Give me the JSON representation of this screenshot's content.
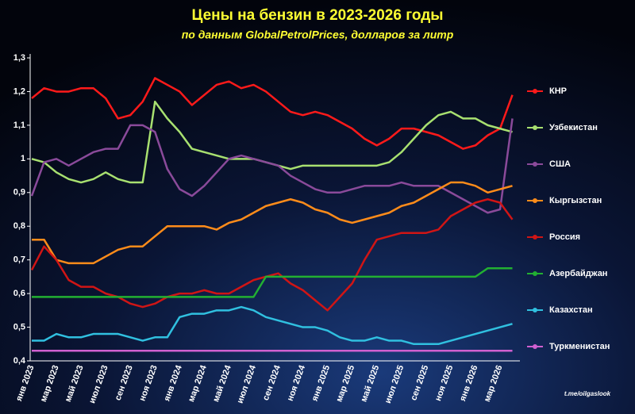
{
  "chart_data": {
    "type": "line",
    "title": "Цены на бензин в 2023-2026 годы",
    "subtitle": "по данным GlobalPetrolPrices, долларов за литр",
    "source": "t.me/oilgaslook",
    "categories": [
      "янв 2023",
      null,
      "мар 2023",
      null,
      "май 2023",
      null,
      "июл 2023",
      null,
      "сен 2023",
      null,
      "ноя 2023",
      null,
      "янв 2024",
      null,
      "мар 2024",
      null,
      "май 2024",
      null,
      "июл 2024",
      null,
      "сен 2024",
      null,
      "ноя 2024",
      null,
      "янв 2025",
      null,
      "мар 2025",
      null,
      "май 2025",
      null,
      "июл 2025",
      null,
      "сен 2025",
      null,
      "ноя 2025",
      null,
      "янв 2026",
      null,
      "мар 2026",
      null
    ],
    "ylim": [
      0.4,
      1.3
    ],
    "yticks": [
      {
        "value": 0.4,
        "label": "0,4"
      },
      {
        "value": 0.5,
        "label": "0,5"
      },
      {
        "value": 0.6,
        "label": "0,6"
      },
      {
        "value": 0.7,
        "label": "0,7"
      },
      {
        "value": 0.8,
        "label": "0,8"
      },
      {
        "value": 0.9,
        "label": "0,9"
      },
      1,
      {
        "value": 1.1,
        "label": "1,1"
      },
      {
        "value": 1.2,
        "label": "1,2"
      },
      {
        "value": 1.3,
        "label": "1,3"
      }
    ],
    "grid": false,
    "legend": "right",
    "series": [
      {
        "name": "КНР",
        "color": "#ff1a1a",
        "values": [
          1.18,
          1.21,
          1.2,
          1.2,
          1.21,
          1.21,
          1.18,
          1.12,
          1.13,
          1.17,
          1.24,
          1.22,
          1.2,
          1.16,
          1.19,
          1.22,
          1.23,
          1.21,
          1.22,
          1.2,
          1.17,
          1.14,
          1.13,
          1.14,
          1.13,
          1.11,
          1.09,
          1.06,
          1.04,
          1.06,
          1.09,
          1.09,
          1.08,
          1.07,
          1.05,
          1.03,
          1.04,
          1.07,
          1.09,
          1.19
        ]
      },
      {
        "name": "Узбекистан",
        "color": "#a8e070",
        "values": [
          1.0,
          0.99,
          0.96,
          0.94,
          0.93,
          0.94,
          0.96,
          0.94,
          0.93,
          0.93,
          1.17,
          1.12,
          1.08,
          1.03,
          1.02,
          1.01,
          1.0,
          1.0,
          1.0,
          0.99,
          0.98,
          0.97,
          0.98,
          0.98,
          0.98,
          0.98,
          0.98,
          0.98,
          0.98,
          0.99,
          1.02,
          1.06,
          1.1,
          1.13,
          1.14,
          1.12,
          1.12,
          1.1,
          1.09,
          1.08
        ]
      },
      {
        "name": "США",
        "color": "#8a4a9a",
        "values": [
          0.89,
          0.99,
          1.0,
          0.98,
          1.0,
          1.02,
          1.03,
          1.03,
          1.1,
          1.1,
          1.08,
          0.97,
          0.91,
          0.89,
          0.92,
          0.96,
          1.0,
          1.01,
          1.0,
          0.99,
          0.98,
          0.95,
          0.93,
          0.91,
          0.9,
          0.9,
          0.91,
          0.92,
          0.92,
          0.92,
          0.93,
          0.92,
          0.92,
          0.92,
          0.9,
          0.88,
          0.86,
          0.84,
          0.85,
          1.12
        ]
      },
      {
        "name": "Кыргызстан",
        "color": "#ff8c1a",
        "values": [
          0.76,
          0.76,
          0.7,
          0.69,
          0.69,
          0.69,
          0.71,
          0.73,
          0.74,
          0.74,
          0.77,
          0.8,
          0.8,
          0.8,
          0.8,
          0.79,
          0.81,
          0.82,
          0.84,
          0.86,
          0.87,
          0.88,
          0.87,
          0.85,
          0.84,
          0.82,
          0.81,
          0.82,
          0.83,
          0.84,
          0.86,
          0.87,
          0.89,
          0.91,
          0.93,
          0.93,
          0.92,
          0.9,
          0.91,
          0.92
        ]
      },
      {
        "name": "Россия",
        "color": "#d01515",
        "values": [
          0.67,
          0.74,
          0.7,
          0.64,
          0.62,
          0.62,
          0.6,
          0.59,
          0.57,
          0.56,
          0.57,
          0.59,
          0.6,
          0.6,
          0.61,
          0.6,
          0.6,
          0.62,
          0.64,
          0.65,
          0.66,
          0.63,
          0.61,
          0.58,
          0.55,
          0.59,
          0.63,
          0.7,
          0.76,
          0.77,
          0.78,
          0.78,
          0.78,
          0.79,
          0.83,
          0.85,
          0.87,
          0.88,
          0.87,
          0.82
        ]
      },
      {
        "name": "Азербайджан",
        "color": "#22b032",
        "values": [
          0.59,
          0.59,
          0.59,
          0.59,
          0.59,
          0.59,
          0.59,
          0.59,
          0.59,
          0.59,
          0.59,
          0.59,
          0.59,
          0.59,
          0.59,
          0.59,
          0.59,
          0.59,
          0.59,
          0.65,
          0.65,
          0.65,
          0.65,
          0.65,
          0.65,
          0.65,
          0.65,
          0.65,
          0.65,
          0.65,
          0.65,
          0.65,
          0.65,
          0.65,
          0.65,
          0.65,
          0.65,
          0.675,
          0.675,
          0.675
        ]
      },
      {
        "name": "Казахстан",
        "color": "#30c0e0",
        "values": [
          0.46,
          0.46,
          0.48,
          0.47,
          0.47,
          0.48,
          0.48,
          0.48,
          0.47,
          0.46,
          0.47,
          0.47,
          0.53,
          0.54,
          0.54,
          0.55,
          0.55,
          0.56,
          0.55,
          0.53,
          0.52,
          0.51,
          0.5,
          0.5,
          0.49,
          0.47,
          0.46,
          0.46,
          0.47,
          0.46,
          0.46,
          0.45,
          0.45,
          0.45,
          0.46,
          0.47,
          0.48,
          0.49,
          0.5,
          0.51
        ]
      },
      {
        "name": "Туркменистан",
        "color": "#d060d0",
        "values": [
          0.43,
          0.43,
          0.43,
          0.43,
          0.43,
          0.43,
          0.43,
          0.43,
          0.43,
          0.43,
          0.43,
          0.43,
          0.43,
          0.43,
          0.43,
          0.43,
          0.43,
          0.43,
          0.43,
          0.43,
          0.43,
          0.43,
          0.43,
          0.43,
          0.43,
          0.43,
          0.43,
          0.43,
          0.43,
          0.43,
          0.43,
          0.43,
          0.43,
          0.43,
          0.43,
          0.43,
          0.43,
          0.43,
          0.43,
          0.43
        ]
      }
    ]
  }
}
